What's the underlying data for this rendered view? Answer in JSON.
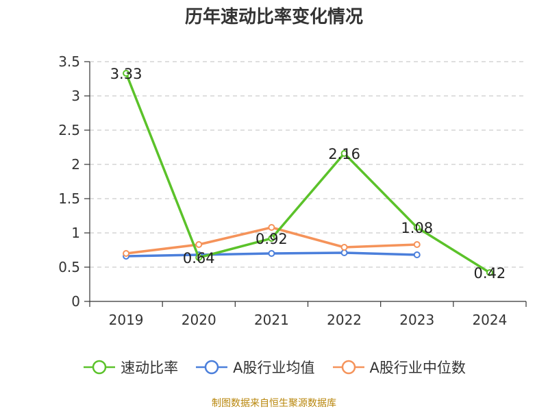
{
  "chart_data": {
    "type": "line",
    "title": "历年速动比率变化情况",
    "categories": [
      "2019",
      "2020",
      "2021",
      "2022",
      "2023",
      "2024"
    ],
    "ylim": [
      0,
      3.5
    ],
    "yticks": [
      "0",
      "0.5",
      "1",
      "1.5",
      "2",
      "2.5",
      "3",
      "3.5"
    ],
    "grid": true,
    "legend_position": "bottom",
    "series": [
      {
        "name": "速动比率",
        "color": "#5bc22a",
        "values": [
          3.33,
          0.64,
          0.92,
          2.16,
          1.08,
          0.42
        ],
        "data_labels": [
          "3.33",
          "0.64",
          "0.92",
          "2.16",
          "1.08",
          "0.42"
        ]
      },
      {
        "name": "A股行业均值",
        "color": "#4b7fdb",
        "values": [
          0.66,
          0.68,
          0.7,
          0.71,
          0.68,
          null
        ]
      },
      {
        "name": "A股行业中位数",
        "color": "#f5935a",
        "values": [
          0.7,
          0.83,
          1.08,
          0.79,
          0.83,
          null
        ]
      }
    ]
  },
  "footer": {
    "note": "制图数据来自恒生聚源数据库"
  }
}
